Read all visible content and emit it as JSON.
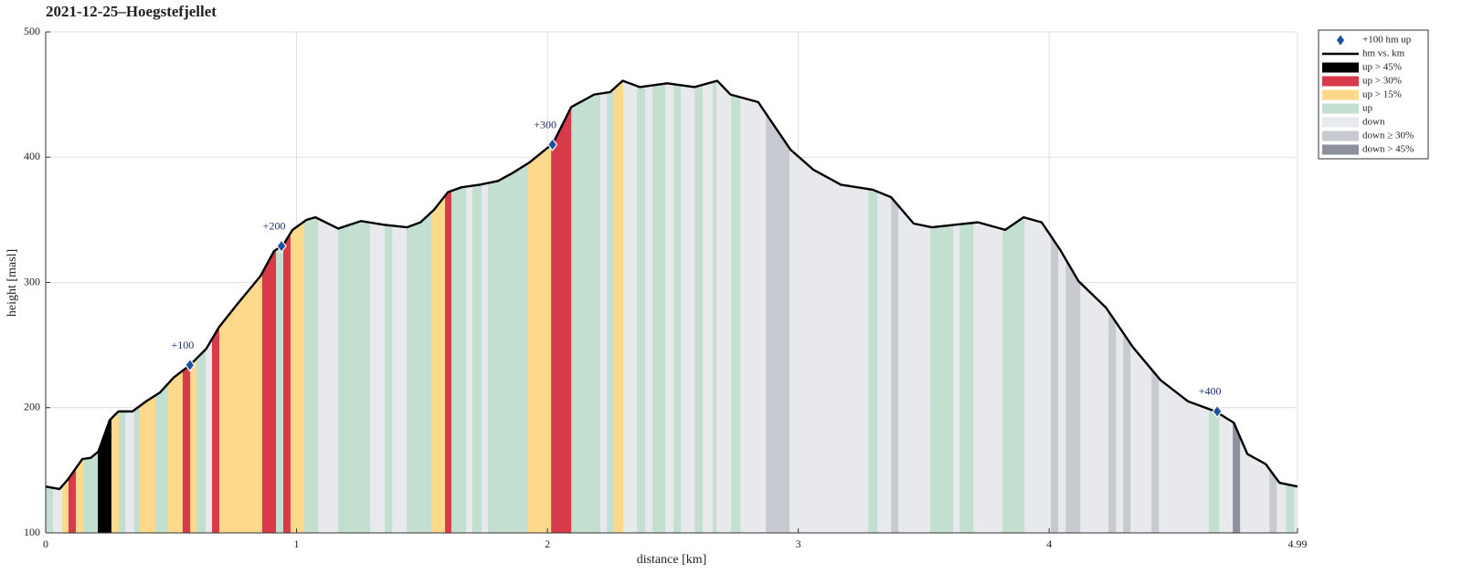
{
  "chart_data": {
    "type": "elevation-profile",
    "title": "2021-12-25–Hoegstefjellet",
    "xlabel": "distance [km]",
    "ylabel": "height [masl]",
    "xlim": [
      0,
      4.99
    ],
    "ylim": [
      100,
      500
    ],
    "xticks": [
      0,
      1,
      2,
      3,
      4,
      4.99
    ],
    "yticks": [
      100,
      200,
      300,
      400,
      500
    ],
    "grid": true,
    "legend": "outside-right",
    "profile": {
      "name": "hm vs. km",
      "color": "#000000",
      "x": [
        0,
        0.055,
        0.09,
        0.146,
        0.18,
        0.21,
        0.255,
        0.29,
        0.346,
        0.4,
        0.455,
        0.51,
        0.575,
        0.64,
        0.69,
        0.765,
        0.856,
        0.91,
        0.947,
        0.984,
        1.04,
        1.075,
        1.166,
        1.257,
        1.348,
        1.44,
        1.494,
        1.548,
        1.603,
        1.658,
        1.73,
        1.803,
        1.858,
        1.93,
        2.022,
        2.095,
        2.186,
        2.25,
        2.3,
        2.368,
        2.477,
        2.587,
        2.677,
        2.73,
        2.84,
        2.969,
        3.06,
        3.17,
        3.297,
        3.37,
        3.46,
        3.533,
        3.625,
        3.716,
        3.825,
        3.898,
        3.97,
        4.044,
        4.117,
        4.226,
        4.335,
        4.444,
        4.554,
        4.663,
        4.736,
        4.79,
        4.863,
        4.918,
        4.99
      ],
      "values": [
        137,
        135,
        143,
        159,
        160,
        165,
        190,
        197,
        197,
        205,
        212,
        224,
        234,
        247,
        264,
        283,
        305,
        325,
        330,
        342,
        350,
        352,
        343,
        349,
        346,
        344,
        348,
        358,
        372,
        376,
        378,
        381,
        387,
        396,
        411,
        440,
        450,
        452,
        461,
        456,
        459,
        456,
        461,
        450,
        444,
        406,
        390,
        378,
        374,
        368,
        347,
        344,
        346,
        348,
        342,
        352,
        348,
        326,
        301,
        280,
        248,
        222,
        205,
        197,
        188,
        163,
        155,
        140,
        137
      ]
    },
    "milestones": {
      "name": "+100 hm up",
      "color": "#1f4fa0",
      "x": [
        0.575,
        0.94,
        2.02,
        4.67
      ],
      "values": [
        234,
        329,
        410,
        197
      ],
      "labels": [
        "+100",
        "+200",
        "+300",
        "+400"
      ]
    },
    "classes": [
      {
        "name": "up > 45%",
        "color": "#000000"
      },
      {
        "name": "up > 30%",
        "color": "#d93a4a"
      },
      {
        "name": "up > 15%",
        "color": "#fdd98c"
      },
      {
        "name": "up",
        "color": "#c3dfcf"
      },
      {
        "name": "down",
        "color": "#e8e9ec"
      },
      {
        "name": "down ≥ 30%",
        "color": "#c8cad2"
      },
      {
        "name": "down > 45%",
        "color": "#8b909c"
      }
    ],
    "band_edges": [
      0,
      0.029,
      0.066,
      0.091,
      0.12,
      0.153,
      0.208,
      0.262,
      0.291,
      0.317,
      0.353,
      0.375,
      0.437,
      0.488,
      0.546,
      0.576,
      0.601,
      0.638,
      0.663,
      0.692,
      0.863,
      0.918,
      0.947,
      0.976,
      1.031,
      1.086,
      1.166,
      1.293,
      1.352,
      1.381,
      1.439,
      1.537,
      1.592,
      1.617,
      1.676,
      1.701,
      1.738,
      1.763,
      1.92,
      2.015,
      2.095,
      2.211,
      2.237,
      2.266,
      2.302,
      2.357,
      2.39,
      2.419,
      2.47,
      2.503,
      2.532,
      2.587,
      2.619,
      2.659,
      2.674,
      2.732,
      2.769,
      2.871,
      2.965,
      3.279,
      3.315,
      3.37,
      3.399,
      3.526,
      3.617,
      3.643,
      3.698,
      3.814,
      3.902,
      4.007,
      4.036,
      4.066,
      4.124,
      4.237,
      4.266,
      4.295,
      4.324,
      4.408,
      4.437,
      4.637,
      4.678,
      4.732,
      4.761,
      4.878,
      4.907,
      4.944,
      4.977,
      4.99
    ],
    "band_classes": [
      3,
      4,
      2,
      1,
      2,
      3,
      0,
      2,
      3,
      4,
      3,
      2,
      3,
      2,
      1,
      2,
      3,
      4,
      1,
      2,
      1,
      3,
      1,
      2,
      3,
      4,
      3,
      4,
      3,
      4,
      3,
      2,
      1,
      3,
      4,
      3,
      4,
      3,
      2,
      1,
      3,
      4,
      3,
      2,
      4,
      3,
      4,
      3,
      4,
      3,
      4,
      3,
      4,
      3,
      4,
      3,
      4,
      5,
      4,
      3,
      4,
      5,
      4,
      3,
      4,
      3,
      4,
      3,
      4,
      5,
      4,
      5,
      4,
      5,
      4,
      5,
      4,
      5,
      4,
      3,
      4,
      6,
      4,
      5,
      4,
      3,
      4
    ]
  }
}
